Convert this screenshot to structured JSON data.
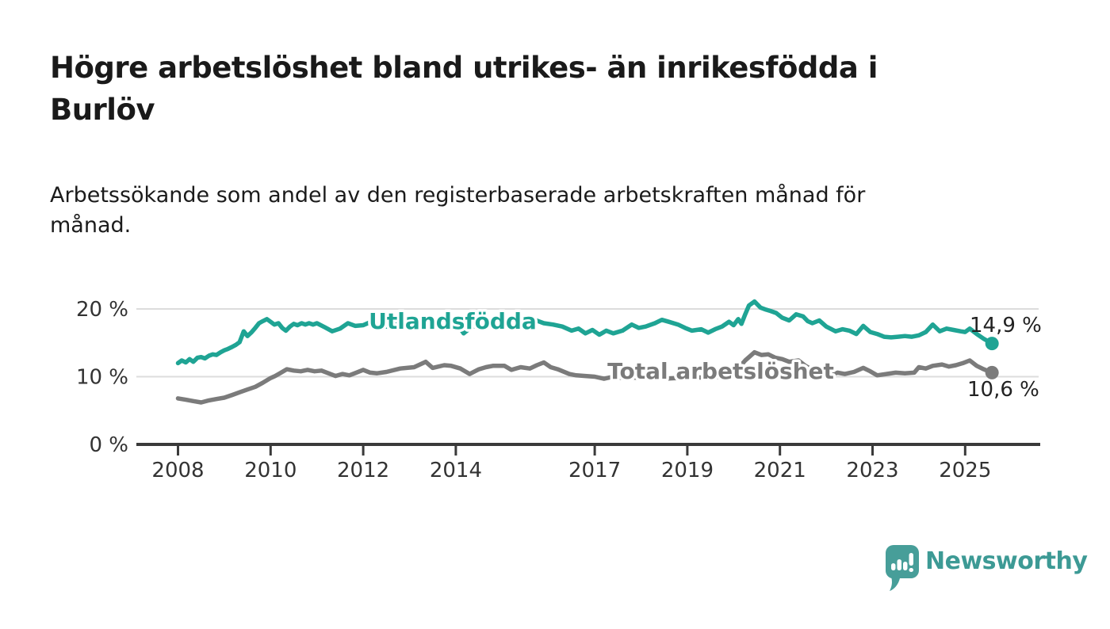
{
  "header": {
    "title": "Högre arbetslöshet bland utrikes- än inrikesfödda i Burlöv",
    "title_lines": [
      "Högre arbetslöshet bland utrikes- än inrikesfödda i",
      "Burlöv"
    ],
    "subtitle": "Arbetssökande som andel av den registerbaserade arbetskraften månad för månad.",
    "subtitle_lines": [
      "Arbetssökande som andel av den registerbaserade arbetskraften månad för",
      "månad."
    ]
  },
  "colors": {
    "accent_teal": "#1fa494",
    "series_gray": "#7b7b7b",
    "grid": "#dcdcdc",
    "axis": "#3a3a3a",
    "tick_text": "#333333",
    "value_text": "#222222",
    "logo_teal": "#479e99"
  },
  "chart_data": {
    "type": "line",
    "title": "Högre arbetslöshet bland utrikes- än inrikesfödda i Burlöv",
    "subtitle": "Arbetssökande som andel av den registerbaserade arbetskraften månad för månad.",
    "unit": "%",
    "grid": "horizontal",
    "legend_position": "inline-labels",
    "x_axis": {
      "range": [
        2007.1,
        2026.6
      ],
      "ticks": [
        2008,
        2010,
        2012,
        2014,
        2017,
        2019,
        2021,
        2023,
        2025
      ],
      "tick_labels": [
        "2008",
        "2010",
        "2012",
        "2014",
        "2017",
        "2019",
        "2021",
        "2023",
        "2025"
      ]
    },
    "y_axis": {
      "range": [
        0,
        23
      ],
      "ticks": [
        0,
        10,
        20
      ],
      "tick_labels": [
        "0 %",
        "10 %",
        "20 %"
      ]
    },
    "series": [
      {
        "name": "Utlandsfödda",
        "color": "#1fa494",
        "end_value": 14.9,
        "end_label": "14,9 %",
        "points": [
          [
            2008.0,
            12.0
          ],
          [
            2008.08,
            12.4
          ],
          [
            2008.17,
            12.1
          ],
          [
            2008.25,
            12.6
          ],
          [
            2008.33,
            12.2
          ],
          [
            2008.42,
            12.8
          ],
          [
            2008.5,
            12.9
          ],
          [
            2008.58,
            12.7
          ],
          [
            2008.67,
            13.1
          ],
          [
            2008.75,
            13.3
          ],
          [
            2008.83,
            13.2
          ],
          [
            2008.92,
            13.6
          ],
          [
            2009.0,
            13.9
          ],
          [
            2009.08,
            14.1
          ],
          [
            2009.17,
            14.4
          ],
          [
            2009.25,
            14.7
          ],
          [
            2009.33,
            15.1
          ],
          [
            2009.42,
            16.7
          ],
          [
            2009.5,
            16.0
          ],
          [
            2009.58,
            16.5
          ],
          [
            2009.67,
            17.2
          ],
          [
            2009.75,
            17.9
          ],
          [
            2009.83,
            18.2
          ],
          [
            2009.92,
            18.5
          ],
          [
            2010.0,
            18.1
          ],
          [
            2010.08,
            17.7
          ],
          [
            2010.17,
            17.9
          ],
          [
            2010.25,
            17.2
          ],
          [
            2010.33,
            16.8
          ],
          [
            2010.42,
            17.4
          ],
          [
            2010.5,
            17.8
          ],
          [
            2010.58,
            17.6
          ],
          [
            2010.67,
            17.9
          ],
          [
            2010.75,
            17.7
          ],
          [
            2010.83,
            17.9
          ],
          [
            2010.92,
            17.7
          ],
          [
            2011.0,
            17.9
          ],
          [
            2011.17,
            17.3
          ],
          [
            2011.33,
            16.7
          ],
          [
            2011.5,
            17.1
          ],
          [
            2011.67,
            17.9
          ],
          [
            2011.83,
            17.5
          ],
          [
            2012.0,
            17.6
          ],
          [
            2012.17,
            18.1
          ],
          [
            2012.33,
            17.7
          ],
          [
            2012.5,
            17.4
          ],
          [
            2012.67,
            17.7
          ],
          [
            2012.83,
            17.9
          ],
          [
            2013.0,
            17.8
          ],
          [
            2013.17,
            18.1
          ],
          [
            2013.33,
            18.3
          ],
          [
            2013.5,
            18.5
          ],
          [
            2013.67,
            18.1
          ],
          [
            2013.83,
            17.8
          ],
          [
            2014.0,
            18.0
          ],
          [
            2014.08,
            17.3
          ],
          [
            2014.17,
            16.4
          ],
          [
            2014.33,
            17.3
          ],
          [
            2014.5,
            17.6
          ],
          [
            2014.67,
            17.4
          ],
          [
            2014.83,
            17.7
          ],
          [
            2015.0,
            17.6
          ],
          [
            2015.17,
            17.8
          ],
          [
            2015.33,
            17.7
          ],
          [
            2015.5,
            18.0
          ],
          [
            2015.7,
            18.4
          ],
          [
            2015.9,
            17.9
          ],
          [
            2016.1,
            17.7
          ],
          [
            2016.3,
            17.4
          ],
          [
            2016.5,
            16.8
          ],
          [
            2016.65,
            17.1
          ],
          [
            2016.8,
            16.4
          ],
          [
            2016.95,
            16.9
          ],
          [
            2017.1,
            16.2
          ],
          [
            2017.25,
            16.8
          ],
          [
            2017.4,
            16.4
          ],
          [
            2017.6,
            16.8
          ],
          [
            2017.8,
            17.7
          ],
          [
            2017.95,
            17.2
          ],
          [
            2018.1,
            17.4
          ],
          [
            2018.3,
            17.9
          ],
          [
            2018.45,
            18.4
          ],
          [
            2018.6,
            18.1
          ],
          [
            2018.8,
            17.7
          ],
          [
            2018.95,
            17.2
          ],
          [
            2019.1,
            16.8
          ],
          [
            2019.3,
            17.0
          ],
          [
            2019.45,
            16.5
          ],
          [
            2019.6,
            17.0
          ],
          [
            2019.75,
            17.4
          ],
          [
            2019.9,
            18.1
          ],
          [
            2020.0,
            17.6
          ],
          [
            2020.1,
            18.5
          ],
          [
            2020.17,
            17.8
          ],
          [
            2020.25,
            19.2
          ],
          [
            2020.33,
            20.5
          ],
          [
            2020.45,
            21.1
          ],
          [
            2020.58,
            20.2
          ],
          [
            2020.7,
            19.9
          ],
          [
            2020.8,
            19.7
          ],
          [
            2020.92,
            19.4
          ],
          [
            2021.05,
            18.7
          ],
          [
            2021.2,
            18.3
          ],
          [
            2021.35,
            19.2
          ],
          [
            2021.5,
            18.9
          ],
          [
            2021.6,
            18.2
          ],
          [
            2021.7,
            17.9
          ],
          [
            2021.85,
            18.3
          ],
          [
            2022.0,
            17.4
          ],
          [
            2022.2,
            16.7
          ],
          [
            2022.35,
            17.0
          ],
          [
            2022.5,
            16.8
          ],
          [
            2022.65,
            16.3
          ],
          [
            2022.8,
            17.5
          ],
          [
            2022.95,
            16.6
          ],
          [
            2023.1,
            16.3
          ],
          [
            2023.25,
            15.9
          ],
          [
            2023.4,
            15.8
          ],
          [
            2023.55,
            15.9
          ],
          [
            2023.7,
            16.0
          ],
          [
            2023.85,
            15.9
          ],
          [
            2024.0,
            16.1
          ],
          [
            2024.15,
            16.6
          ],
          [
            2024.3,
            17.7
          ],
          [
            2024.45,
            16.7
          ],
          [
            2024.6,
            17.1
          ],
          [
            2024.75,
            16.9
          ],
          [
            2024.9,
            16.7
          ],
          [
            2025.0,
            16.6
          ],
          [
            2025.1,
            17.1
          ],
          [
            2025.25,
            16.3
          ],
          [
            2025.4,
            15.6
          ],
          [
            2025.58,
            14.9
          ]
        ]
      },
      {
        "name": "Total arbetslöshet",
        "color": "#7b7b7b",
        "end_value": 10.6,
        "end_label": "10,6 %",
        "points": [
          [
            2008.0,
            6.8
          ],
          [
            2008.17,
            6.6
          ],
          [
            2008.33,
            6.4
          ],
          [
            2008.5,
            6.2
          ],
          [
            2008.67,
            6.5
          ],
          [
            2008.83,
            6.7
          ],
          [
            2009.0,
            6.9
          ],
          [
            2009.17,
            7.3
          ],
          [
            2009.33,
            7.7
          ],
          [
            2009.5,
            8.1
          ],
          [
            2009.67,
            8.5
          ],
          [
            2009.83,
            9.1
          ],
          [
            2010.0,
            9.8
          ],
          [
            2010.1,
            10.1
          ],
          [
            2010.2,
            10.5
          ],
          [
            2010.35,
            11.1
          ],
          [
            2010.5,
            10.9
          ],
          [
            2010.65,
            10.8
          ],
          [
            2010.8,
            11.0
          ],
          [
            2010.95,
            10.8
          ],
          [
            2011.1,
            10.9
          ],
          [
            2011.25,
            10.5
          ],
          [
            2011.4,
            10.1
          ],
          [
            2011.55,
            10.4
          ],
          [
            2011.7,
            10.2
          ],
          [
            2011.85,
            10.6
          ],
          [
            2012.0,
            11.0
          ],
          [
            2012.15,
            10.6
          ],
          [
            2012.3,
            10.5
          ],
          [
            2012.5,
            10.7
          ],
          [
            2012.8,
            11.2
          ],
          [
            2013.1,
            11.4
          ],
          [
            2013.35,
            12.2
          ],
          [
            2013.5,
            11.3
          ],
          [
            2013.75,
            11.7
          ],
          [
            2013.9,
            11.6
          ],
          [
            2014.1,
            11.2
          ],
          [
            2014.3,
            10.4
          ],
          [
            2014.5,
            11.1
          ],
          [
            2014.65,
            11.4
          ],
          [
            2014.8,
            11.6
          ],
          [
            2015.05,
            11.6
          ],
          [
            2015.2,
            11.0
          ],
          [
            2015.4,
            11.4
          ],
          [
            2015.6,
            11.2
          ],
          [
            2015.75,
            11.7
          ],
          [
            2015.9,
            12.1
          ],
          [
            2016.05,
            11.4
          ],
          [
            2016.2,
            11.1
          ],
          [
            2016.45,
            10.4
          ],
          [
            2016.6,
            10.2
          ],
          [
            2016.8,
            10.1
          ],
          [
            2017.0,
            10.0
          ],
          [
            2017.2,
            9.7
          ],
          [
            2017.4,
            10.0
          ],
          [
            2017.6,
            9.8
          ],
          [
            2017.8,
            9.9
          ],
          [
            2018.0,
            9.8
          ],
          [
            2018.25,
            10.0
          ],
          [
            2018.5,
            9.7
          ],
          [
            2018.75,
            9.8
          ],
          [
            2019.0,
            9.7
          ],
          [
            2019.25,
            9.9
          ],
          [
            2019.5,
            9.8
          ],
          [
            2019.7,
            10.0
          ],
          [
            2019.9,
            10.6
          ],
          [
            2020.1,
            11.2
          ],
          [
            2020.25,
            12.4
          ],
          [
            2020.45,
            13.6
          ],
          [
            2020.6,
            13.2
          ],
          [
            2020.75,
            13.3
          ],
          [
            2020.9,
            12.8
          ],
          [
            2021.05,
            12.6
          ],
          [
            2021.2,
            12.2
          ],
          [
            2021.4,
            12.4
          ],
          [
            2021.55,
            11.6
          ],
          [
            2021.7,
            11.0
          ],
          [
            2021.85,
            10.9
          ],
          [
            2022.0,
            10.7
          ],
          [
            2022.1,
            10.3
          ],
          [
            2022.25,
            10.6
          ],
          [
            2022.4,
            10.4
          ],
          [
            2022.6,
            10.7
          ],
          [
            2022.8,
            11.3
          ],
          [
            2022.95,
            10.8
          ],
          [
            2023.1,
            10.2
          ],
          [
            2023.3,
            10.4
          ],
          [
            2023.5,
            10.6
          ],
          [
            2023.7,
            10.5
          ],
          [
            2023.9,
            10.6
          ],
          [
            2024.0,
            11.4
          ],
          [
            2024.15,
            11.2
          ],
          [
            2024.3,
            11.6
          ],
          [
            2024.5,
            11.8
          ],
          [
            2024.65,
            11.5
          ],
          [
            2024.8,
            11.7
          ],
          [
            2024.95,
            12.0
          ],
          [
            2025.1,
            12.4
          ],
          [
            2025.25,
            11.6
          ],
          [
            2025.4,
            11.1
          ],
          [
            2025.58,
            10.6
          ]
        ]
      }
    ]
  },
  "footer": {
    "brand": "Newsworthy",
    "logo_icon": "bar-chart-speech-bubble-icon"
  }
}
